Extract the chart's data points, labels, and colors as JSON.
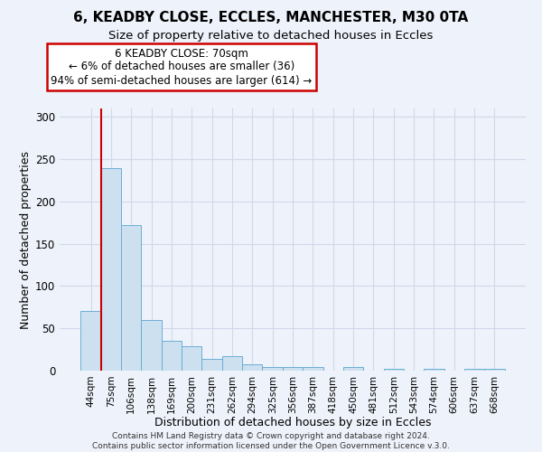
{
  "title1": "6, KEADBY CLOSE, ECCLES, MANCHESTER, M30 0TA",
  "title2": "Size of property relative to detached houses in Eccles",
  "xlabel": "Distribution of detached houses by size in Eccles",
  "ylabel": "Number of detached properties",
  "categories": [
    "44sqm",
    "75sqm",
    "106sqm",
    "138sqm",
    "169sqm",
    "200sqm",
    "231sqm",
    "262sqm",
    "294sqm",
    "325sqm",
    "356sqm",
    "387sqm",
    "418sqm",
    "450sqm",
    "481sqm",
    "512sqm",
    "543sqm",
    "574sqm",
    "606sqm",
    "637sqm",
    "668sqm"
  ],
  "values": [
    71,
    239,
    172,
    60,
    35,
    29,
    14,
    17,
    8,
    4,
    4,
    4,
    0,
    4,
    0,
    2,
    0,
    2,
    0,
    2,
    2
  ],
  "bar_color": "#cce0f0",
  "bar_edge_color": "#6baed6",
  "grid_color": "#d0d8e8",
  "background_color": "#eef2fa",
  "red_line_index": 1,
  "annotation_title": "6 KEADBY CLOSE: 70sqm",
  "annotation_line1": "← 6% of detached houses are smaller (36)",
  "annotation_line2": "94% of semi-detached houses are larger (614) →",
  "annotation_box_color": "#ffffff",
  "annotation_border_color": "#cc0000",
  "red_line_color": "#cc0000",
  "ylim": [
    0,
    310
  ],
  "yticks": [
    0,
    50,
    100,
    150,
    200,
    250,
    300
  ],
  "title1_fontsize": 11,
  "title2_fontsize": 9.5,
  "xlabel_fontsize": 9,
  "ylabel_fontsize": 9,
  "footer_line1": "Contains HM Land Registry data © Crown copyright and database right 2024.",
  "footer_line2": "Contains public sector information licensed under the Open Government Licence v.3.0."
}
